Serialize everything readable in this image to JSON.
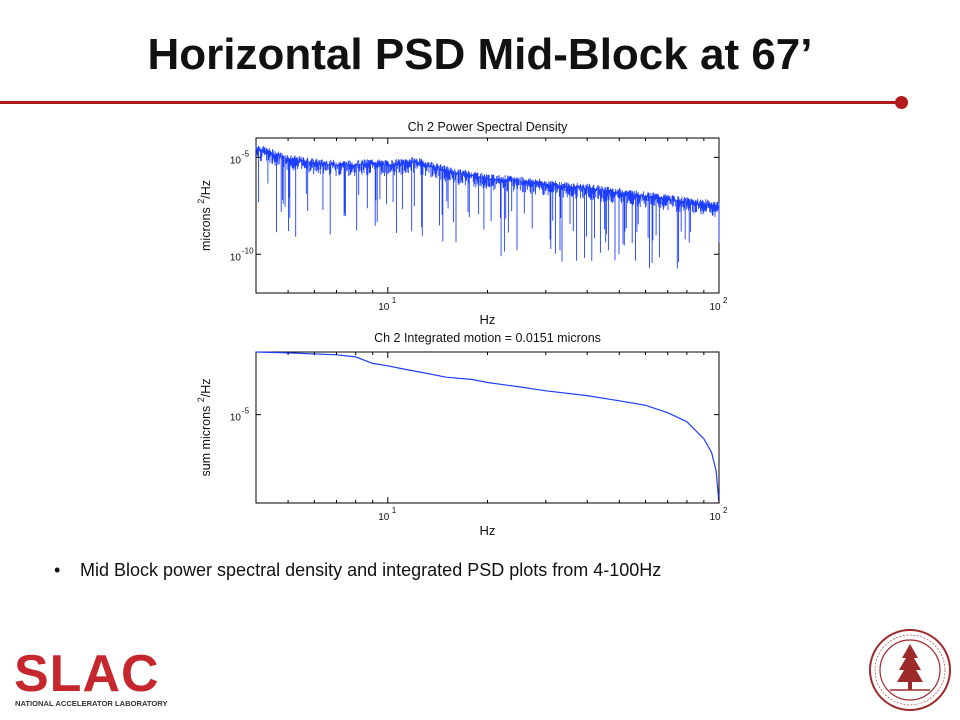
{
  "slide": {
    "title": "Horizontal PSD Mid-Block at 67’",
    "bullet": "Mid Block power spectral density and integrated PSD plots from 4-100Hz",
    "accent_color": "#b31b1b"
  },
  "logo": {
    "text": "SLAC",
    "subtitle": "NATIONAL ACCELERATOR LABORATORY",
    "color": "#c6262e"
  },
  "seal": {
    "icon": "stanford-seal-icon",
    "color": "#9e2a2b"
  },
  "chart_data": [
    {
      "type": "line",
      "title": "Ch 2  Power Spectral Density",
      "xlabel": "Hz",
      "ylabel": "microns",
      "ylabel_sup": "2",
      "ylabel_suffix": "/Hz",
      "x_scale": "log",
      "y_scale": "log",
      "xlim": [
        4,
        100
      ],
      "ylim": [
        1e-12,
        0.0001
      ],
      "x_ticks": [
        {
          "base": "10",
          "exp": "1",
          "value": 10
        },
        {
          "base": "10",
          "exp": "2",
          "value": 100
        }
      ],
      "y_ticks": [
        {
          "base": "10",
          "exp": "-5",
          "value": 1e-05
        },
        {
          "base": "10",
          "exp": "-10",
          "value": 1e-10
        }
      ],
      "series": [
        {
          "color": "#1f3fff",
          "x": [
            4,
            4.5,
            5,
            6,
            7,
            8,
            9,
            10,
            12,
            14,
            16,
            18,
            20,
            25,
            30,
            35,
            40,
            50,
            60,
            70,
            80,
            90,
            100
          ],
          "y": [
            3e-05,
            1.5e-05,
            8e-06,
            5e-06,
            4e-06,
            4e-06,
            5e-06,
            4e-06,
            6e-06,
            3e-06,
            1.5e-06,
            1.2e-06,
            8e-07,
            6e-07,
            4e-07,
            3e-07,
            2.5e-07,
            1.5e-07,
            1e-07,
            7e-08,
            5e-08,
            4e-08,
            3e-08
          ]
        }
      ],
      "grid": false
    },
    {
      "type": "line",
      "title": "Ch 2  Integrated motion =  0.0151 microns",
      "xlabel": "Hz",
      "ylabel": "sum microns",
      "ylabel_sup": "2",
      "ylabel_suffix": "/Hz",
      "x_scale": "log",
      "y_scale": "log",
      "xlim": [
        4,
        100
      ],
      "ylim": [
        1.2e-07,
        0.00023
      ],
      "x_ticks": [
        {
          "base": "10",
          "exp": "1",
          "value": 10
        },
        {
          "base": "10",
          "exp": "2",
          "value": 100
        }
      ],
      "y_ticks": [
        {
          "base": "10",
          "exp": "-5",
          "value": 1e-05
        }
      ],
      "series": [
        {
          "color": "#1f3fff",
          "x": [
            4,
            5,
            7,
            8,
            9,
            10,
            11,
            13,
            15,
            18,
            20,
            25,
            30,
            40,
            50,
            60,
            70,
            80,
            90,
            95,
            98,
            100
          ],
          "y": [
            0.00023,
            0.00022,
            0.0002,
            0.00018,
            0.00013,
            0.000115,
            0.0001,
            8e-05,
            6.5e-05,
            5.8e-05,
            5e-05,
            4e-05,
            3.3e-05,
            2.6e-05,
            2e-05,
            1.6e-05,
            1.1e-05,
            7e-06,
            3e-06,
            1.5e-06,
            6e-07,
            1.2e-07
          ]
        }
      ],
      "grid": false
    }
  ]
}
